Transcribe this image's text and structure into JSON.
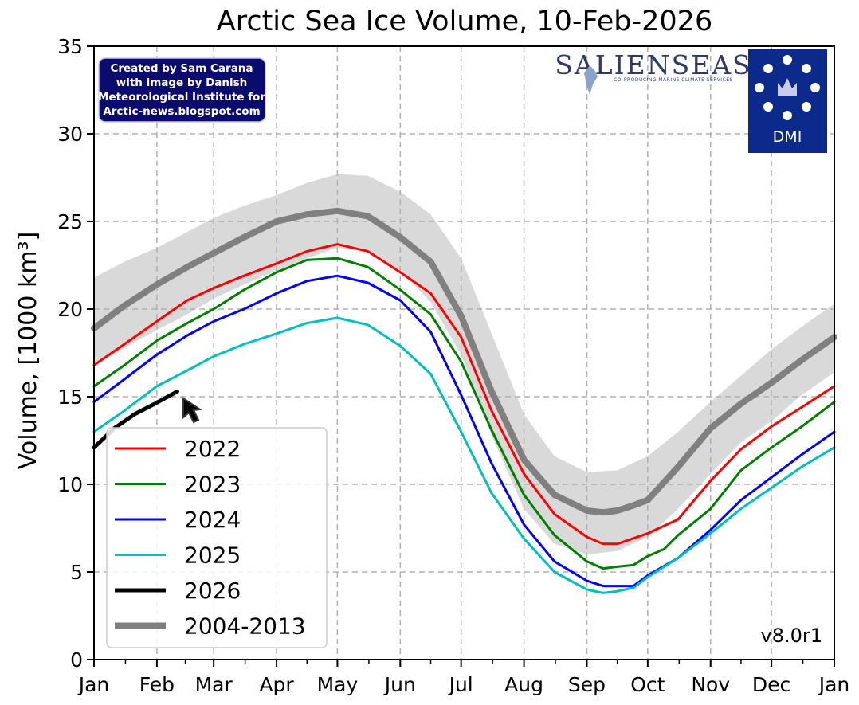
{
  "chart_data": {
    "type": "line",
    "title": "Arctic Sea Ice Volume, 10-Feb-2026",
    "ylabel": "Volume, [1000 km³]",
    "xlabel": "",
    "x_ticks": [
      "Jan",
      "Feb",
      "Mar",
      "Apr",
      "May",
      "Jun",
      "Jul",
      "Aug",
      "Sep",
      "Oct",
      "Nov",
      "Dec",
      "Jan"
    ],
    "y_ticks": [
      0,
      5,
      10,
      15,
      20,
      25,
      30,
      35
    ],
    "ylim": [
      0,
      35
    ],
    "grid": true,
    "legend_position": "lower-left",
    "version": "v8.0r1",
    "band": {
      "x": [
        0,
        15,
        31,
        46,
        59,
        74,
        90,
        105,
        120,
        135,
        151,
        166,
        181,
        196,
        212,
        227,
        243,
        258,
        273,
        288,
        304,
        319,
        334,
        349,
        365
      ],
      "upper": [
        21.8,
        22.7,
        23.5,
        24.4,
        25.2,
        25.9,
        26.5,
        27.2,
        27.7,
        27.6,
        26.7,
        25.4,
        22.9,
        18.6,
        14.0,
        11.6,
        10.7,
        10.8,
        11.6,
        13.0,
        14.7,
        16.2,
        17.7,
        19.0,
        20.3
      ],
      "lower": [
        16.8,
        17.8,
        18.8,
        19.7,
        20.6,
        21.4,
        22.2,
        22.9,
        23.5,
        23.3,
        22.2,
        20.4,
        17.4,
        12.8,
        8.6,
        6.6,
        6.0,
        6.2,
        7.0,
        8.6,
        10.6,
        12.4,
        13.6,
        15.1,
        16.4
      ]
    },
    "series": [
      {
        "name": "2022",
        "color": "#ff0000",
        "width": 3,
        "x": [
          0,
          15,
          31,
          46,
          59,
          74,
          90,
          105,
          120,
          135,
          151,
          166,
          181,
          196,
          212,
          227,
          243,
          251,
          258,
          273,
          288,
          304,
          319,
          334,
          349,
          365
        ],
        "values": [
          16.8,
          18.0,
          19.3,
          20.5,
          21.2,
          21.9,
          22.6,
          23.3,
          23.7,
          23.3,
          22.1,
          20.9,
          18.4,
          14.2,
          10.6,
          8.3,
          7.0,
          6.6,
          6.6,
          7.2,
          8.0,
          10.2,
          12.0,
          13.3,
          14.4,
          15.6
        ]
      },
      {
        "name": "2023",
        "color": "#008000",
        "width": 3,
        "x": [
          0,
          15,
          31,
          46,
          59,
          74,
          90,
          105,
          120,
          135,
          151,
          166,
          181,
          196,
          212,
          227,
          243,
          251,
          258,
          266,
          273,
          281,
          288,
          304,
          319,
          334,
          349,
          365
        ],
        "values": [
          15.6,
          16.8,
          18.2,
          19.2,
          20.0,
          21.1,
          22.1,
          22.8,
          22.9,
          22.4,
          21.1,
          19.7,
          17.0,
          13.1,
          9.4,
          7.1,
          5.6,
          5.2,
          5.3,
          5.4,
          5.9,
          6.3,
          7.1,
          8.6,
          10.8,
          12.1,
          13.3,
          14.7
        ]
      },
      {
        "name": "2024",
        "color": "#0000ff",
        "width": 3,
        "x": [
          0,
          15,
          31,
          46,
          59,
          74,
          90,
          105,
          120,
          135,
          151,
          166,
          181,
          196,
          212,
          227,
          243,
          251,
          258,
          266,
          273,
          288,
          304,
          319,
          334,
          349,
          365
        ],
        "values": [
          14.7,
          16.0,
          17.4,
          18.5,
          19.3,
          20.0,
          20.9,
          21.6,
          21.9,
          21.5,
          20.5,
          18.7,
          15.1,
          11.2,
          7.7,
          5.6,
          4.5,
          4.2,
          4.2,
          4.2,
          4.8,
          5.8,
          7.4,
          9.1,
          10.4,
          11.7,
          13.0
        ]
      },
      {
        "name": "2025",
        "color": "#00bfbf",
        "width": 3,
        "x": [
          0,
          15,
          31,
          46,
          59,
          74,
          90,
          105,
          120,
          135,
          151,
          166,
          181,
          196,
          212,
          227,
          243,
          251,
          258,
          266,
          273,
          288,
          304,
          319,
          334,
          349,
          365
        ],
        "values": [
          13.0,
          14.2,
          15.6,
          16.5,
          17.3,
          18.0,
          18.6,
          19.2,
          19.5,
          19.1,
          17.9,
          16.3,
          13.0,
          9.5,
          6.9,
          5.0,
          4.0,
          3.8,
          3.9,
          4.1,
          4.7,
          5.8,
          7.2,
          8.6,
          9.8,
          11.0,
          12.1
        ]
      },
      {
        "name": "2026",
        "color": "#000000",
        "width": 5,
        "x": [
          0,
          10,
          20,
          30,
          41
        ],
        "values": [
          12.1,
          13.2,
          14.0,
          14.6,
          15.3
        ]
      },
      {
        "name": "2004-2013",
        "color": "#808080",
        "width": 8,
        "x": [
          0,
          15,
          31,
          46,
          59,
          74,
          90,
          105,
          120,
          135,
          151,
          166,
          181,
          196,
          212,
          227,
          243,
          251,
          258,
          266,
          273,
          288,
          304,
          319,
          334,
          349,
          365
        ],
        "values": [
          18.9,
          20.2,
          21.4,
          22.4,
          23.2,
          24.1,
          25.0,
          25.4,
          25.6,
          25.3,
          24.1,
          22.7,
          19.6,
          15.3,
          11.4,
          9.4,
          8.5,
          8.4,
          8.5,
          8.8,
          9.1,
          11.0,
          13.2,
          14.6,
          15.8,
          17.1,
          18.4
        ]
      }
    ]
  },
  "credit_lines": [
    "Created by Sam Carana",
    "with image by Danish",
    "Meteorological Institute for",
    "Arctic-news.blogspot.com"
  ],
  "brand": {
    "name": "SALIENSEAS",
    "tagline": "CO-PRODUCING MARINE CLIMATE SERVICES",
    "dmi": "DMI"
  },
  "pointer_icon": "cursor-arrow",
  "colors": {
    "band": "#d9d9d9",
    "grid": "#b0b0b0",
    "dmi_bg": "#0c2a8c",
    "credit_bg": "#0b0b6e"
  }
}
